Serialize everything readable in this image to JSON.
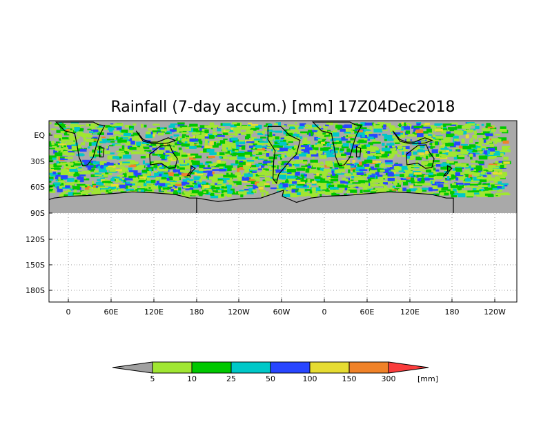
{
  "title": "Rainfall (7-day accum.) [mm] 17Z04Dec2018",
  "map": {
    "y_ticks": [
      "EQ",
      "30S",
      "60S",
      "90S",
      "120S",
      "150S",
      "180S"
    ],
    "x_ticks": [
      "0",
      "60E",
      "120E",
      "180",
      "120W",
      "60W",
      "0",
      "60E",
      "120E",
      "180",
      "120W"
    ],
    "background_color": "#a9a9a9",
    "coastline_color": "#000000",
    "grid": "dotted"
  },
  "colorbar": {
    "unit": "[mm]",
    "levels": [
      "5",
      "10",
      "25",
      "50",
      "100",
      "150",
      "300"
    ],
    "colors": [
      "#a0a0a0",
      "#a0e632",
      "#00c800",
      "#00c8c8",
      "#2846ff",
      "#e6dc32",
      "#f08228",
      "#fa3c3c"
    ]
  }
}
